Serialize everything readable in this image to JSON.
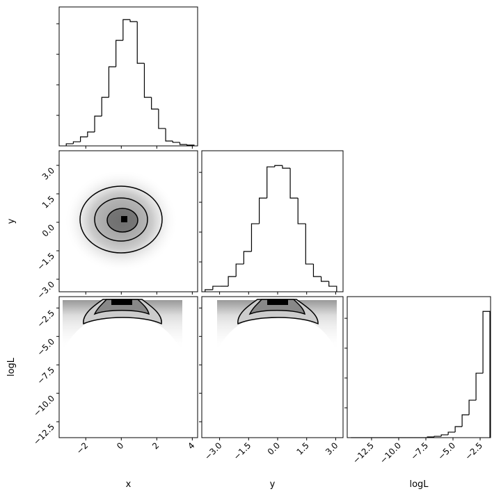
{
  "chart_data": [
    {
      "type": "histogram",
      "bins": [
        -3.1,
        -2.7,
        -2.3,
        -1.9,
        -1.5,
        -1.1,
        -0.7,
        -0.3,
        0.1,
        0.5,
        0.9,
        1.3,
        1.7,
        2.1,
        2.5,
        2.9,
        3.3,
        3.7,
        4.1
      ],
      "values": [
        14,
        27,
        59,
        91,
        195,
        318,
        518,
        691,
        827,
        814,
        541,
        318,
        241,
        114,
        32,
        23,
        9,
        5
      ],
      "xlim": [
        -3.5,
        4.3
      ],
      "xticks": [
        -2,
        0,
        2,
        4
      ],
      "ylim": [
        0,
        910
      ],
      "yticks": [
        200,
        400,
        600,
        800
      ]
    },
    {
      "type": "hist2d",
      "xlim": [
        -3.5,
        4.3
      ],
      "xticks": [
        -2,
        0,
        2,
        4
      ],
      "ylim": [
        -3.66,
        3.77
      ],
      "yticks": [
        {
          "value": -3,
          "label": "−3.0"
        },
        {
          "value": -1.5,
          "label": "−1.5"
        },
        {
          "value": 0,
          "label": "0.0"
        },
        {
          "value": 1.5,
          "label": "1.5"
        },
        {
          "value": 3,
          "label": "3.0"
        }
      ],
      "ylabel": "y"
    },
    {
      "type": "histogram",
      "bins": [
        -3.75,
        -3.35,
        -2.95,
        -2.55,
        -2.15,
        -1.75,
        -1.35,
        -0.95,
        -0.55,
        -0.15,
        0.25,
        0.65,
        1.05,
        1.45,
        1.85,
        2.25,
        2.65,
        3.05
      ],
      "values": [
        14,
        37,
        37,
        102,
        186,
        270,
        456,
        628,
        837,
        846,
        828,
        628,
        456,
        186,
        102,
        70,
        37
      ],
      "xlim": [
        -3.92,
        3.38
      ],
      "xticks": [
        -3,
        -1.5,
        0,
        1.5,
        3
      ],
      "ylim": [
        0,
        945
      ],
      "yticks": [
        200,
        400,
        600,
        800
      ]
    },
    {
      "type": "hist2d",
      "xlim": [
        -3.5,
        4.3
      ],
      "xticks": [
        {
          "value": -2,
          "label": "−2"
        },
        {
          "value": 0,
          "label": "0"
        },
        {
          "value": 2,
          "label": "2"
        },
        {
          "value": 4,
          "label": "4"
        }
      ],
      "ylim": [
        -13.9,
        -1.5
      ],
      "yticks": [
        {
          "value": -12.5,
          "label": "−12.5"
        },
        {
          "value": -10,
          "label": "−10.0"
        },
        {
          "value": -7.5,
          "label": "−7.5"
        },
        {
          "value": -5,
          "label": "−5.0"
        },
        {
          "value": -2.5,
          "label": "−2.5"
        }
      ],
      "xlabel": "x",
      "ylabel": "logL"
    },
    {
      "type": "hist2d",
      "xlim": [
        -3.92,
        3.38
      ],
      "xticks": [
        {
          "value": -3,
          "label": "−3.0"
        },
        {
          "value": -1.5,
          "label": "−1.5"
        },
        {
          "value": 0,
          "label": "0.0"
        },
        {
          "value": 1.5,
          "label": "1.5"
        },
        {
          "value": 3,
          "label": "3.0"
        }
      ],
      "ylim": [
        -13.9,
        -1.5
      ],
      "yticks": [
        -12.5,
        -10,
        -7.5,
        -5,
        -2.5
      ],
      "xlabel": "y"
    },
    {
      "type": "histogram",
      "bins": [
        -14.4,
        -13.76,
        -13.12,
        -12.48,
        -11.84,
        -11.2,
        -10.56,
        -9.92,
        -9.28,
        -8.64,
        -8.0,
        -7.36,
        -6.72,
        -6.08,
        -5.44,
        -4.8,
        -4.16,
        -3.52,
        -2.88,
        -2.24,
        -1.6
      ],
      "values": [
        0,
        0,
        0,
        0,
        0,
        0,
        0,
        0,
        0,
        0,
        0,
        5,
        9,
        19,
        37,
        74,
        153,
        251,
        432,
        846
      ],
      "xlim": [
        -14.74,
        -1.54
      ],
      "xticks": [
        {
          "value": -12.5,
          "label": "−12.5"
        },
        {
          "value": -10,
          "label": "−10.0"
        },
        {
          "value": -7.5,
          "label": "−7.5"
        },
        {
          "value": -5,
          "label": "−5.0"
        },
        {
          "value": -2.5,
          "label": "−2.5"
        }
      ],
      "ylim": [
        0,
        945
      ],
      "yticks": [
        200,
        400,
        600,
        800
      ],
      "xlabel": "logL"
    }
  ]
}
